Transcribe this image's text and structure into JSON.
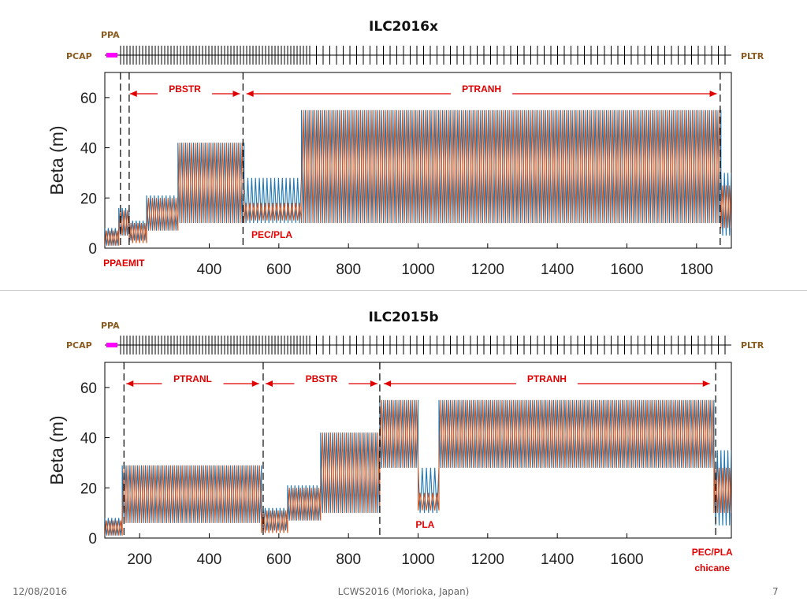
{
  "slide": {
    "footer_date": "12/08/2016",
    "footer_center": "LCWS2016 (Morioka, Japan)",
    "footer_page": "7"
  },
  "colors": {
    "beta_x": "#1f77b4",
    "beta_y": "#d95319",
    "pcap": "#ff00ff",
    "annotation": "#e00000",
    "side_label": "#8a5a1e"
  },
  "chart_data": [
    {
      "type": "line",
      "title": "ILC2016x",
      "ylabel": "Beta (m)",
      "xlim": [
        100,
        1900
      ],
      "ylim": [
        0,
        70
      ],
      "yticks": [
        0,
        20,
        40,
        60
      ],
      "xticks": [
        400,
        600,
        800,
        1000,
        1200,
        1400,
        1600,
        1800
      ],
      "lattice_labels": {
        "top": "PPA",
        "left": "PCAP",
        "right": "PLTR"
      },
      "annotations": [
        {
          "text": "PBSTR",
          "from": 165,
          "to": 495
        },
        {
          "text": "PTRANH",
          "from": 500,
          "to": 1865
        },
        {
          "text": "PEC/PLA",
          "x": 580
        },
        {
          "text": "PPAEMIT",
          "x": 155
        }
      ],
      "dashed_lines": [
        145,
        170,
        497,
        1868
      ],
      "segments": [
        {
          "from": 100,
          "to": 140,
          "beta_x": [
            1,
            8
          ],
          "beta_y": [
            1,
            7
          ]
        },
        {
          "from": 140,
          "to": 170,
          "beta_x": [
            5,
            16
          ],
          "beta_y": [
            5,
            15
          ]
        },
        {
          "from": 170,
          "to": 220,
          "beta_x": [
            3,
            11
          ],
          "beta_y": [
            2,
            10
          ]
        },
        {
          "from": 220,
          "to": 310,
          "beta_x": [
            7,
            21
          ],
          "beta_y": [
            7,
            20
          ]
        },
        {
          "from": 310,
          "to": 500,
          "beta_x": [
            10,
            42
          ],
          "beta_y": [
            10,
            42
          ]
        },
        {
          "from": 500,
          "to": 665,
          "beta_x": [
            10,
            28
          ],
          "beta_y": [
            11,
            18
          ]
        },
        {
          "from": 665,
          "to": 1870,
          "beta_x": [
            10,
            55
          ],
          "beta_y": [
            10,
            55
          ]
        },
        {
          "from": 1870,
          "to": 1900,
          "beta_x": [
            5,
            30
          ],
          "beta_y": [
            8,
            25
          ]
        }
      ]
    },
    {
      "type": "line",
      "title": "ILC2015b",
      "ylabel": "Beta (m)",
      "xlim": [
        100,
        1900
      ],
      "ylim": [
        0,
        70
      ],
      "yticks": [
        0,
        20,
        40,
        60
      ],
      "xticks": [
        200,
        400,
        600,
        800,
        1000,
        1200,
        1400,
        1600
      ],
      "lattice_labels": {
        "top": "PPA",
        "left": "PCAP",
        "right": "PLTR"
      },
      "annotations": [
        {
          "text": "PTRANL",
          "from": 155,
          "to": 550
        },
        {
          "text": "PBSTR",
          "from": 555,
          "to": 890
        },
        {
          "text": "PTRANH",
          "from": 895,
          "to": 1845
        },
        {
          "text": "PLA",
          "x": 1020
        },
        {
          "text": "PEC/PLA",
          "x": 1845
        },
        {
          "text": "chicane",
          "x": 1845
        }
      ],
      "dashed_lines": [
        155,
        555,
        890,
        1855
      ],
      "segments": [
        {
          "from": 100,
          "to": 150,
          "beta_x": [
            1,
            8
          ],
          "beta_y": [
            1,
            7
          ]
        },
        {
          "from": 150,
          "to": 550,
          "beta_x": [
            6,
            29
          ],
          "beta_y": [
            6,
            29
          ]
        },
        {
          "from": 550,
          "to": 625,
          "beta_x": [
            3,
            12
          ],
          "beta_y": [
            2,
            11
          ]
        },
        {
          "from": 625,
          "to": 720,
          "beta_x": [
            7,
            21
          ],
          "beta_y": [
            7,
            20
          ]
        },
        {
          "from": 720,
          "to": 890,
          "beta_x": [
            10,
            42
          ],
          "beta_y": [
            10,
            42
          ]
        },
        {
          "from": 890,
          "to": 1000,
          "beta_x": [
            28,
            55
          ],
          "beta_y": [
            28,
            55
          ]
        },
        {
          "from": 1000,
          "to": 1060,
          "beta_x": [
            10,
            28
          ],
          "beta_y": [
            11,
            18
          ]
        },
        {
          "from": 1060,
          "to": 1850,
          "beta_x": [
            28,
            55
          ],
          "beta_y": [
            28,
            55
          ]
        },
        {
          "from": 1850,
          "to": 1900,
          "beta_x": [
            5,
            35
          ],
          "beta_y": [
            10,
            28
          ]
        }
      ]
    }
  ]
}
